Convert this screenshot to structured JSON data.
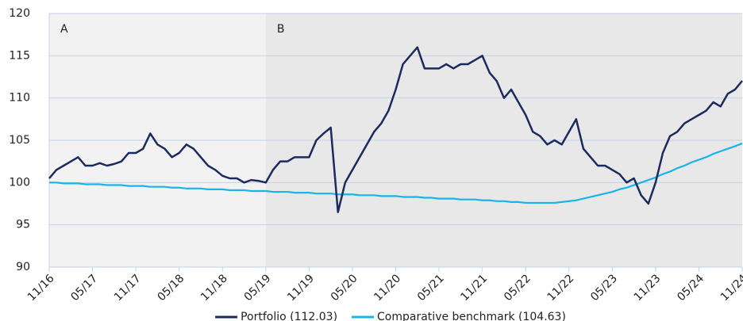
{
  "chart_data": {
    "type": "line",
    "categories": [
      "11/16",
      null,
      null,
      null,
      null,
      null,
      "05/17",
      null,
      null,
      null,
      null,
      null,
      "11/17",
      null,
      null,
      null,
      null,
      null,
      "05/18",
      null,
      null,
      null,
      null,
      null,
      "11/18",
      null,
      null,
      null,
      null,
      null,
      "05/19",
      null,
      null,
      null,
      null,
      null,
      "11/19",
      null,
      null,
      null,
      null,
      null,
      "05/20",
      null,
      null,
      null,
      null,
      null,
      "11/20",
      null,
      null,
      null,
      null,
      null,
      "05/21",
      null,
      null,
      null,
      null,
      null,
      "11/21",
      null,
      null,
      null,
      null,
      null,
      "05/22",
      null,
      null,
      null,
      null,
      null,
      "11/22",
      null,
      null,
      null,
      null,
      null,
      "05/23",
      null,
      null,
      null,
      null,
      null,
      "11/23",
      null,
      null,
      null,
      null,
      null,
      "05/24",
      null,
      null,
      null,
      null,
      null,
      "11/24"
    ],
    "series": [
      {
        "name": "Portfolio (112.03)",
        "color": "#1c2b5f",
        "values": [
          100.5,
          101.5,
          102,
          102.5,
          103,
          102,
          102,
          102.3,
          102,
          102.2,
          102.5,
          103.5,
          103.5,
          104,
          105.8,
          104.5,
          104,
          103,
          103.5,
          104.5,
          104,
          103,
          102,
          101.5,
          100.8,
          100.5,
          100.5,
          100,
          100.3,
          100.2,
          100,
          101.5,
          102.5,
          102.5,
          103,
          103,
          103,
          105,
          105.8,
          106.5,
          96.5,
          100,
          101.5,
          103,
          104.5,
          106,
          107,
          108.5,
          111,
          114,
          115,
          116,
          113.5,
          113.5,
          113.5,
          114,
          113.5,
          114,
          114,
          114.5,
          115,
          113,
          112,
          110,
          111,
          109.5,
          108,
          106,
          105.5,
          104.5,
          105,
          104.5,
          106,
          107.5,
          104,
          103,
          102,
          102,
          101.5,
          101,
          100,
          100.5,
          98.5,
          97.5,
          100,
          103.5,
          105.5,
          106,
          107,
          107.5,
          108,
          108.5,
          109.5,
          109,
          110.5,
          111,
          112.03
        ]
      },
      {
        "name": "Comparative benchmark (104.63)",
        "color": "#1ab4e8",
        "values": [
          100.0,
          100.0,
          99.9,
          99.9,
          99.9,
          99.8,
          99.8,
          99.8,
          99.7,
          99.7,
          99.7,
          99.6,
          99.6,
          99.6,
          99.5,
          99.5,
          99.5,
          99.4,
          99.4,
          99.3,
          99.3,
          99.3,
          99.2,
          99.2,
          99.2,
          99.1,
          99.1,
          99.1,
          99.0,
          99.0,
          99.0,
          98.9,
          98.9,
          98.9,
          98.8,
          98.8,
          98.8,
          98.7,
          98.7,
          98.7,
          98.6,
          98.6,
          98.6,
          98.5,
          98.5,
          98.5,
          98.4,
          98.4,
          98.4,
          98.3,
          98.3,
          98.3,
          98.2,
          98.2,
          98.1,
          98.1,
          98.1,
          98.0,
          98.0,
          98.0,
          97.9,
          97.9,
          97.8,
          97.8,
          97.7,
          97.7,
          97.6,
          97.6,
          97.6,
          97.6,
          97.6,
          97.7,
          97.8,
          97.9,
          98.1,
          98.3,
          98.5,
          98.7,
          98.9,
          99.2,
          99.4,
          99.7,
          100.0,
          100.3,
          100.6,
          101.0,
          101.3,
          101.7,
          102.0,
          102.4,
          102.7,
          103.0,
          103.4,
          103.7,
          104.0,
          104.3,
          104.63
        ]
      }
    ],
    "regions": [
      {
        "label": "A",
        "start": "11/16",
        "end": "05/19",
        "color": "#f2f2f2"
      },
      {
        "label": "B",
        "start": "05/19",
        "end": "11/24",
        "color": "#e8e8e8"
      }
    ],
    "ylim": [
      90,
      120
    ],
    "yticks": [
      90,
      95,
      100,
      105,
      110,
      115,
      120
    ],
    "grid": true,
    "legend": "bottom"
  }
}
